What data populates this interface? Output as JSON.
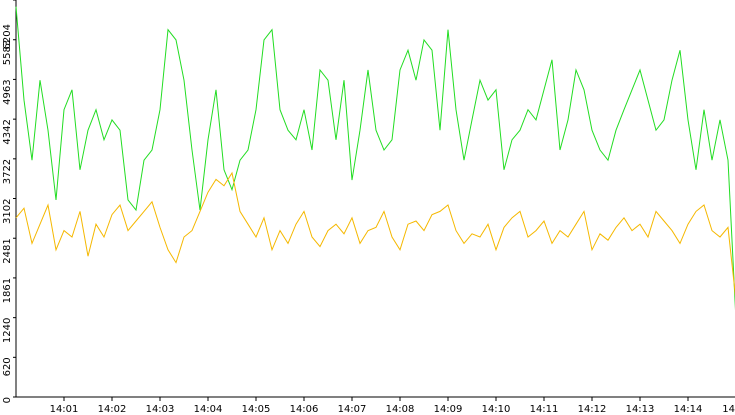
{
  "chart_data": {
    "type": "line",
    "categories": [
      null,
      null,
      null,
      null,
      null,
      null,
      "14:01",
      null,
      null,
      null,
      null,
      null,
      "14:02",
      null,
      null,
      null,
      null,
      null,
      "14:03",
      null,
      null,
      null,
      null,
      null,
      "14:04",
      null,
      null,
      null,
      null,
      null,
      "14:05",
      null,
      null,
      null,
      null,
      null,
      "14:06",
      null,
      null,
      null,
      null,
      null,
      "14:07",
      null,
      null,
      null,
      null,
      null,
      "14:08",
      null,
      null,
      null,
      null,
      null,
      "14:09",
      null,
      null,
      null,
      null,
      null,
      "14:10",
      null,
      null,
      null,
      null,
      null,
      "14:11",
      null,
      null,
      null,
      null,
      null,
      "14:12",
      null,
      null,
      null,
      null,
      null,
      "14:13",
      null,
      null,
      null,
      null,
      null,
      "14:14",
      null,
      null,
      null,
      null,
      null,
      "14"
    ],
    "series": [
      {
        "color": "#22dd22",
        "values": [
          6100,
          4640,
          3700,
          4950,
          4170,
          3080,
          4490,
          4800,
          3550,
          4170,
          4490,
          4020,
          4330,
          4170,
          3080,
          2920,
          3700,
          3860,
          4490,
          5740,
          5580,
          4950,
          3860,
          2920,
          4020,
          4800,
          3550,
          3240,
          3700,
          3860,
          4490,
          5580,
          5740,
          4490,
          4170,
          4020,
          4490,
          3860,
          5110,
          4950,
          4020,
          4950,
          3390,
          4170,
          5110,
          4170,
          3860,
          4020,
          5110,
          5420,
          4950,
          5580,
          5420,
          4170,
          5740,
          4490,
          3700,
          4330,
          4950,
          4640,
          4800,
          3550,
          4020,
          4170,
          4490,
          4330,
          4800,
          5270,
          3860,
          4330,
          5110,
          4800,
          4170,
          3860,
          3700,
          4170,
          4490,
          4800,
          5110,
          4640,
          4170,
          4330,
          4950,
          5420,
          4330,
          3550,
          4490,
          3700,
          4330,
          3700,
          1200
        ]
      },
      {
        "color": "#f5b800",
        "values": [
          2800,
          2950,
          2400,
          2700,
          3000,
          2300,
          2600,
          2500,
          2900,
          2200,
          2700,
          2500,
          2850,
          3000,
          2600,
          2750,
          2900,
          3050,
          2650,
          2300,
          2100,
          2500,
          2600,
          2900,
          3200,
          3400,
          3300,
          3500,
          2900,
          2700,
          2500,
          2800,
          2300,
          2600,
          2400,
          2700,
          2900,
          2500,
          2350,
          2600,
          2700,
          2550,
          2800,
          2400,
          2600,
          2650,
          2900,
          2500,
          2300,
          2700,
          2750,
          2600,
          2850,
          2900,
          3000,
          2600,
          2400,
          2550,
          2500,
          2700,
          2300,
          2650,
          2800,
          2900,
          2500,
          2600,
          2750,
          2400,
          2600,
          2500,
          2700,
          2900,
          2300,
          2550,
          2450,
          2650,
          2800,
          2600,
          2700,
          2500,
          2900,
          2750,
          2600,
          2400,
          2700,
          2900,
          3000,
          2600,
          2500,
          2650,
          1500
        ]
      }
    ],
    "ylim": [
      0,
      6204
    ],
    "yticks": [
      0,
      620,
      1240,
      1861,
      2481,
      3102,
      3722,
      4342,
      4963,
      5583,
      6204
    ],
    "grid": false
  }
}
